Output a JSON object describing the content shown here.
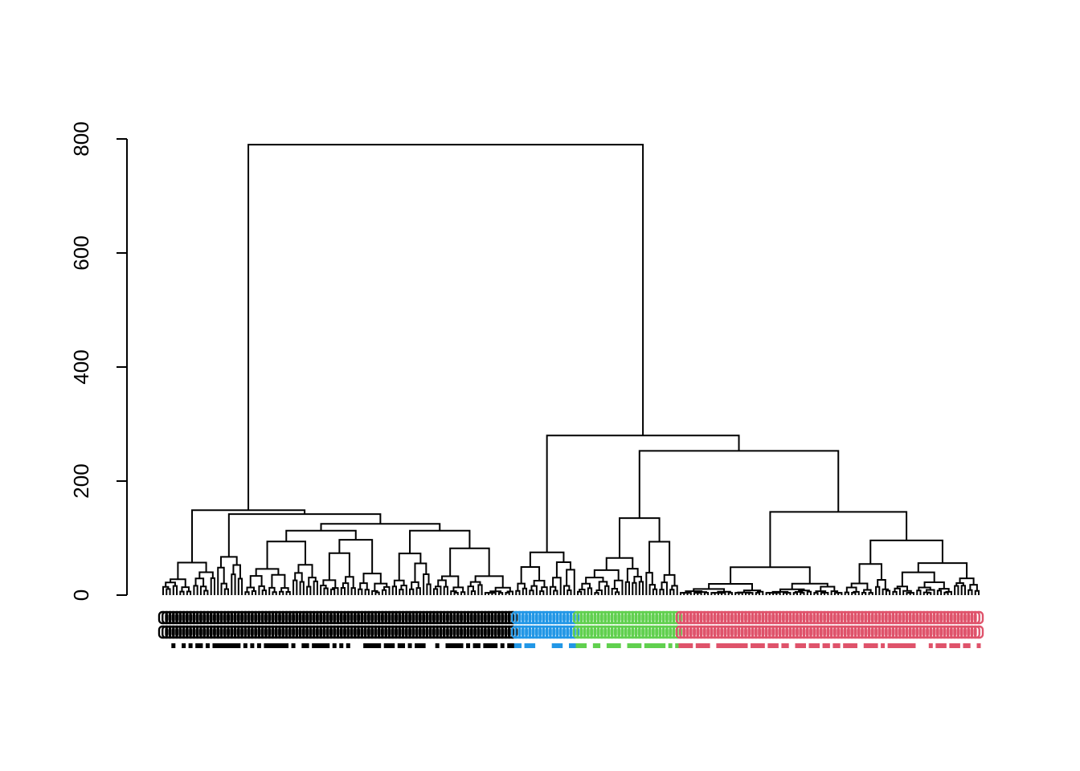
{
  "chart_data": {
    "type": "dendrogram",
    "title": "",
    "xlabel": "",
    "ylabel": "",
    "ylim": [
      0,
      800
    ],
    "yticks": [
      0,
      200,
      400,
      600,
      800
    ],
    "ytick_labels": [
      "0",
      "200",
      "400",
      "600",
      "800"
    ],
    "line_color": "#000000",
    "cluster_colors": {
      "black": "#000000",
      "blue": "#2297E6",
      "green": "#61D04F",
      "red": "#DF536B"
    },
    "leaf_labels_legible": false,
    "tree": {
      "h": 790,
      "children": [
        {
          "h": 149,
          "children": [
            {
              "h": 57,
              "n": 16,
              "color": "black"
            },
            {
              "h": 142,
              "children": [
                {
                  "h": 67,
                  "n": 8,
                  "color": "black"
                },
                {
                  "h": 125,
                  "children": [
                    {
                      "h": 113,
                      "children": [
                        {
                          "h": 94,
                          "n": 22,
                          "color": "black"
                        },
                        {
                          "h": 97,
                          "n": 21,
                          "color": "black"
                        }
                      ]
                    },
                    {
                      "h": 113,
                      "children": [
                        {
                          "h": 73,
                          "n": 12,
                          "color": "black"
                        },
                        {
                          "h": 82,
                          "n": 24,
                          "color": "black"
                        }
                      ]
                    }
                  ]
                }
              ]
            }
          ]
        },
        {
          "h": 280,
          "children": [
            {
              "h": 75,
              "n": 18,
              "color": "blue"
            },
            {
              "h": 253,
              "children": [
                {
                  "h": 135,
                  "n": 30,
                  "color": "green"
                },
                {
                  "h": 146,
                  "children": [
                    {
                      "h": 49,
                      "n": 48,
                      "color": "red"
                    },
                    {
                      "h": 96,
                      "n": 40,
                      "color": "red"
                    }
                  ]
                }
              ]
            }
          ]
        }
      ]
    }
  }
}
